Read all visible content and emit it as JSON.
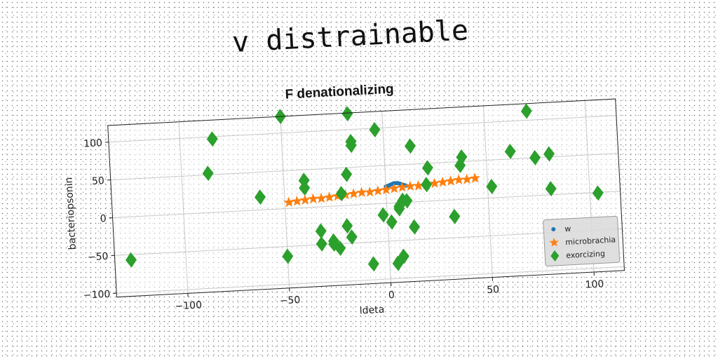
{
  "figure_title": "v distrainable",
  "chart_data": {
    "type": "scatter",
    "title": "F denationalizing",
    "xlabel": "ldeta",
    "ylabel": "bacteriopsonin",
    "xlim": [
      -135,
      115
    ],
    "ylim": [
      -105,
      122
    ],
    "xticks": [
      -100,
      -50,
      0,
      50,
      100
    ],
    "xtick_labels": [
      "−100",
      "−50",
      "0",
      "50",
      "100"
    ],
    "yticks": [
      -100,
      -50,
      0,
      50,
      100
    ],
    "ytick_labels": [
      "−100",
      "−50",
      "0",
      "50",
      "100"
    ],
    "grid": true,
    "legend_position": "lower right",
    "series": [
      {
        "name": "w",
        "marker": "circle",
        "color": "#1f77b4",
        "x": [
          0,
          1,
          2,
          3,
          4,
          5,
          6,
          7,
          8,
          9,
          10
        ],
        "y": [
          22,
          23,
          24,
          25,
          26,
          26,
          26,
          25,
          24,
          23,
          22
        ]
      },
      {
        "name": "microbrachia",
        "marker": "star",
        "color": "#ff7f0e",
        "x": [
          -48,
          -44,
          -40,
          -36,
          -32,
          -28,
          -24,
          -20,
          -16,
          -12,
          -8,
          -4,
          0,
          4,
          8,
          12,
          16,
          20,
          24,
          28,
          32,
          36,
          40,
          44
        ],
        "y": [
          8,
          9,
          10,
          11,
          11,
          12,
          13,
          14,
          15,
          16,
          16,
          17,
          18,
          19,
          20,
          21,
          21,
          22,
          23,
          24,
          25,
          26,
          26,
          27
        ]
      },
      {
        "name": "exorcizing",
        "marker": "diamond",
        "color": "#2ca02c",
        "x": [
          -50,
          -17,
          -84,
          -87,
          -16,
          -4,
          -16,
          13,
          -127,
          -62,
          -40,
          -40,
          -22,
          -19,
          21,
          -27,
          20,
          37,
          38,
          52,
          104,
          62,
          71,
          74,
          81,
          81,
          8,
          -33,
          -33,
          -27,
          -20,
          -18,
          -2,
          4,
          6,
          10,
          13,
          33,
          7,
          -50,
          -8,
          6,
          -24,
          2
        ],
        "y": [
          122,
          121,
          97,
          52,
          84,
          98,
          79,
          74,
          -57,
          17,
          36,
          26,
          16,
          41,
          44,
          -46,
          22,
          45,
          56,
          15,
          -1,
          60,
          112,
          50,
          8,
          54,
          3,
          -32,
          -49,
          -50,
          -27,
          -42,
          -15,
          -80,
          -5,
          2,
          -33,
          -22,
          -71,
          -63,
          -79,
          -8,
          -56,
          -25
        ]
      }
    ]
  }
}
